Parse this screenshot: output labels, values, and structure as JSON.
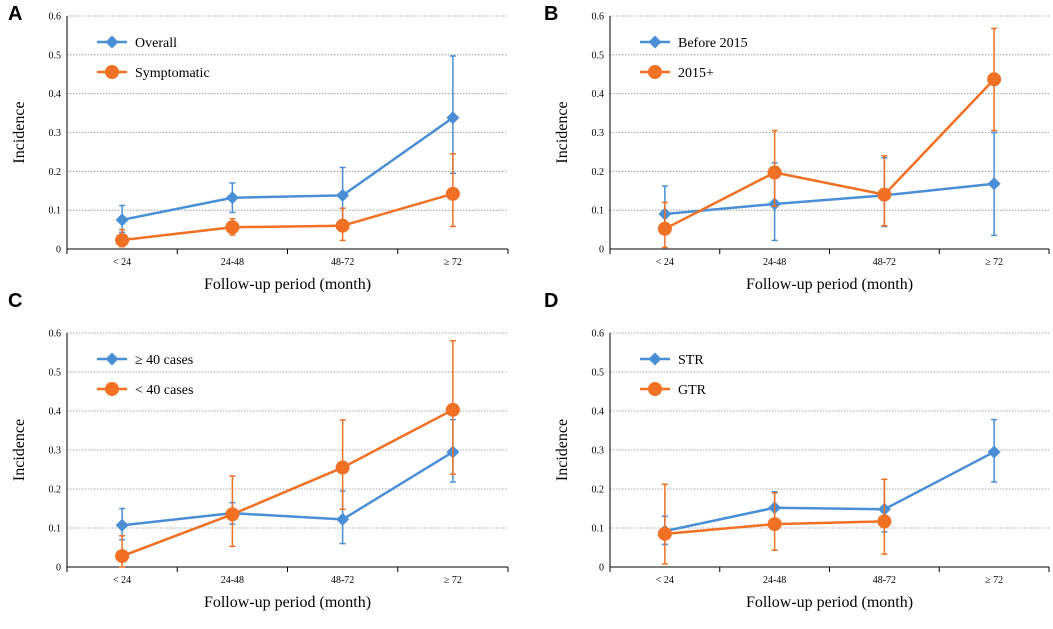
{
  "colors": {
    "blue": "#4a8fd6",
    "orange": "#f07024",
    "grid": "#8c8c8c"
  },
  "chart_data": [
    {
      "panel": "A",
      "type": "line",
      "categories": [
        "< 24",
        "24-48",
        "48-72",
        "≥ 72"
      ],
      "xlabel": "Follow-up period (month)",
      "ylabel": "Incidence",
      "ylim": [
        0,
        0.6
      ],
      "yticks": [
        "0",
        "0.1",
        "0.2",
        "0.3",
        "0.4",
        "0.5",
        "0.6"
      ],
      "legend_position": "top-left",
      "series": [
        {
          "name": "Overall",
          "color": "#4a8fd6",
          "marker": "diamond",
          "values": [
            0.075,
            0.132,
            0.138,
            0.338
          ],
          "lower": [
            0.043,
            0.094,
            0.075,
            0.195
          ],
          "upper": [
            0.112,
            0.17,
            0.21,
            0.497
          ]
        },
        {
          "name": "Symptomatic",
          "color": "#f07024",
          "marker": "circle",
          "values": [
            0.023,
            0.056,
            0.06,
            0.142
          ],
          "lower": [
            0.006,
            0.036,
            0.022,
            0.058
          ],
          "upper": [
            0.05,
            0.078,
            0.105,
            0.245
          ]
        }
      ]
    },
    {
      "panel": "B",
      "type": "line",
      "categories": [
        "< 24",
        "24-48",
        "48-72",
        "≥ 72"
      ],
      "xlabel": "Follow-up period (month)",
      "ylabel": "Incidence",
      "ylim": [
        0,
        0.6
      ],
      "yticks": [
        "0",
        "0.1",
        "0.2",
        "0.3",
        "0.4",
        "0.5",
        "0.6"
      ],
      "legend_position": "top-left",
      "series": [
        {
          "name": "Before 2015",
          "color": "#4a8fd6",
          "marker": "diamond",
          "values": [
            0.09,
            0.116,
            0.138,
            0.168
          ],
          "lower": [
            0.04,
            0.022,
            0.058,
            0.035
          ],
          "upper": [
            0.162,
            0.222,
            0.235,
            0.3
          ]
        },
        {
          "name": "2015+",
          "color": "#f07024",
          "marker": "circle",
          "values": [
            0.052,
            0.197,
            0.14,
            0.437
          ],
          "lower": [
            0.004,
            0.11,
            0.06,
            0.305
          ],
          "upper": [
            0.12,
            0.305,
            0.24,
            0.568
          ]
        }
      ]
    },
    {
      "panel": "C",
      "type": "line",
      "categories": [
        "< 24",
        "24-48",
        "48-72",
        "≥ 72"
      ],
      "xlabel": "Follow-up period (month)",
      "ylabel": "Incidence",
      "ylim": [
        0,
        0.6
      ],
      "yticks": [
        "0",
        "0.1",
        "0.2",
        "0.3",
        "0.4",
        "0.5",
        "0.6"
      ],
      "legend_position": "top-left",
      "series": [
        {
          "name": "≥ 40 cases",
          "color": "#4a8fd6",
          "marker": "diamond",
          "values": [
            0.107,
            0.138,
            0.122,
            0.295
          ],
          "lower": [
            0.07,
            0.11,
            0.06,
            0.218
          ],
          "upper": [
            0.15,
            0.165,
            0.195,
            0.378
          ]
        },
        {
          "name": "< 40 cases",
          "color": "#f07024",
          "marker": "circle",
          "values": [
            0.028,
            0.135,
            0.255,
            0.403
          ],
          "lower": [
            0.0,
            0.053,
            0.148,
            0.238
          ],
          "upper": [
            0.08,
            0.233,
            0.377,
            0.58
          ]
        }
      ]
    },
    {
      "panel": "D",
      "type": "line",
      "categories": [
        "< 24",
        "24-48",
        "48-72",
        "≥ 72"
      ],
      "xlabel": "Follow-up period (month)",
      "ylabel": "Incidence",
      "ylim": [
        0,
        0.6
      ],
      "yticks": [
        "0",
        "0.1",
        "0.2",
        "0.3",
        "0.4",
        "0.5",
        "0.6"
      ],
      "legend_position": "top-left",
      "series": [
        {
          "name": "STR",
          "color": "#4a8fd6",
          "marker": "diamond",
          "values": [
            0.092,
            0.152,
            0.148,
            0.295
          ],
          "lower": [
            0.058,
            0.112,
            0.09,
            0.218
          ],
          "upper": [
            0.13,
            0.193,
            0.225,
            0.378
          ]
        },
        {
          "name": "GTR",
          "color": "#f07024",
          "marker": "circle",
          "values": [
            0.085,
            0.11,
            0.117,
            null
          ],
          "lower": [
            0.008,
            0.043,
            0.033,
            null
          ],
          "upper": [
            0.212,
            0.19,
            0.225,
            null
          ]
        }
      ]
    }
  ]
}
